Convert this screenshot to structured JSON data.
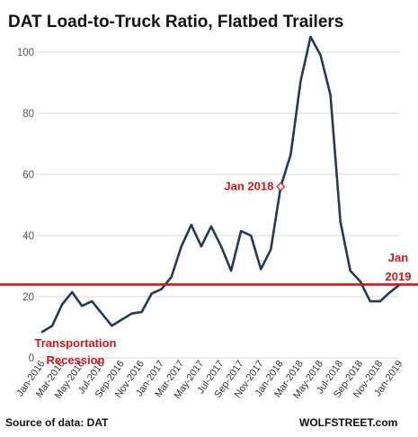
{
  "chart_data": {
    "type": "line",
    "title": "DAT Load-to-Truck  Ratio, Flatbed Trailers",
    "x_categories": [
      "Jan-2016",
      "Feb-2016",
      "Mar-2016",
      "Apr-2016",
      "May-2016",
      "Jun-2016",
      "Jul-2016",
      "Aug-2016",
      "Sep-2016",
      "Oct-2016",
      "Nov-2016",
      "Dec-2016",
      "Jan-2017",
      "Feb-2017",
      "Mar-2017",
      "Apr-2017",
      "May-2017",
      "Jun-2017",
      "Jul-2017",
      "Aug-2017",
      "Sep-2017",
      "Oct-2017",
      "Nov-2017",
      "Dec-2017",
      "Jan-2018",
      "Feb-2018",
      "Mar-2018",
      "Apr-2018",
      "May-2018",
      "Jun-2018",
      "Jul-2018",
      "Aug-2018",
      "Sep-2018",
      "Oct-2018",
      "Nov-2018",
      "Dec-2018",
      "Jan-2019"
    ],
    "x_tick_labels": [
      "Jan-2016",
      "Mar-2016",
      "May-2016",
      "Jul-2016",
      "Sep-2016",
      "Nov-2016",
      "Jan-2017",
      "Mar-2017",
      "May-2017",
      "Jul-2017",
      "Sep-2017",
      "Nov-2017",
      "Jan-2018",
      "Mar-2018",
      "May-2018",
      "Jul-2018",
      "Sep-2018",
      "Nov-2018",
      "Jan-2019"
    ],
    "series": [
      {
        "values": [
          8.5,
          10.5,
          17.5,
          21.5,
          17,
          18.5,
          14.5,
          10.5,
          12.5,
          14.5,
          15,
          21,
          22.5,
          26.5,
          36.5,
          43.5,
          36.5,
          43,
          36.5,
          28.5,
          41.5,
          40,
          29,
          35.5,
          56,
          66.5,
          90.5,
          105,
          99,
          86,
          44.5,
          28.5,
          25,
          18.5,
          18.5,
          21.5,
          24
        ]
      }
    ],
    "ylim": [
      0,
      110
    ],
    "y_ticks": [
      0,
      20,
      40,
      60,
      80,
      100
    ],
    "grid": "horizontal",
    "reference_line": {
      "value": 24,
      "color": "#e01010"
    },
    "line_color": "#1f3a5a",
    "annotations": [
      {
        "text": "Jan 2018",
        "at": "Jan-2018",
        "value": 56,
        "color": "#d01818"
      },
      {
        "lines": [
          "Jan",
          "2019"
        ],
        "at": "Jan-2019",
        "color": "#d01818"
      },
      {
        "lines": [
          "Transportation",
          "Recession"
        ],
        "color": "#d01818"
      }
    ]
  },
  "footer": {
    "source": "Source of data: DAT",
    "brand": "WOLFSTREET.com"
  }
}
